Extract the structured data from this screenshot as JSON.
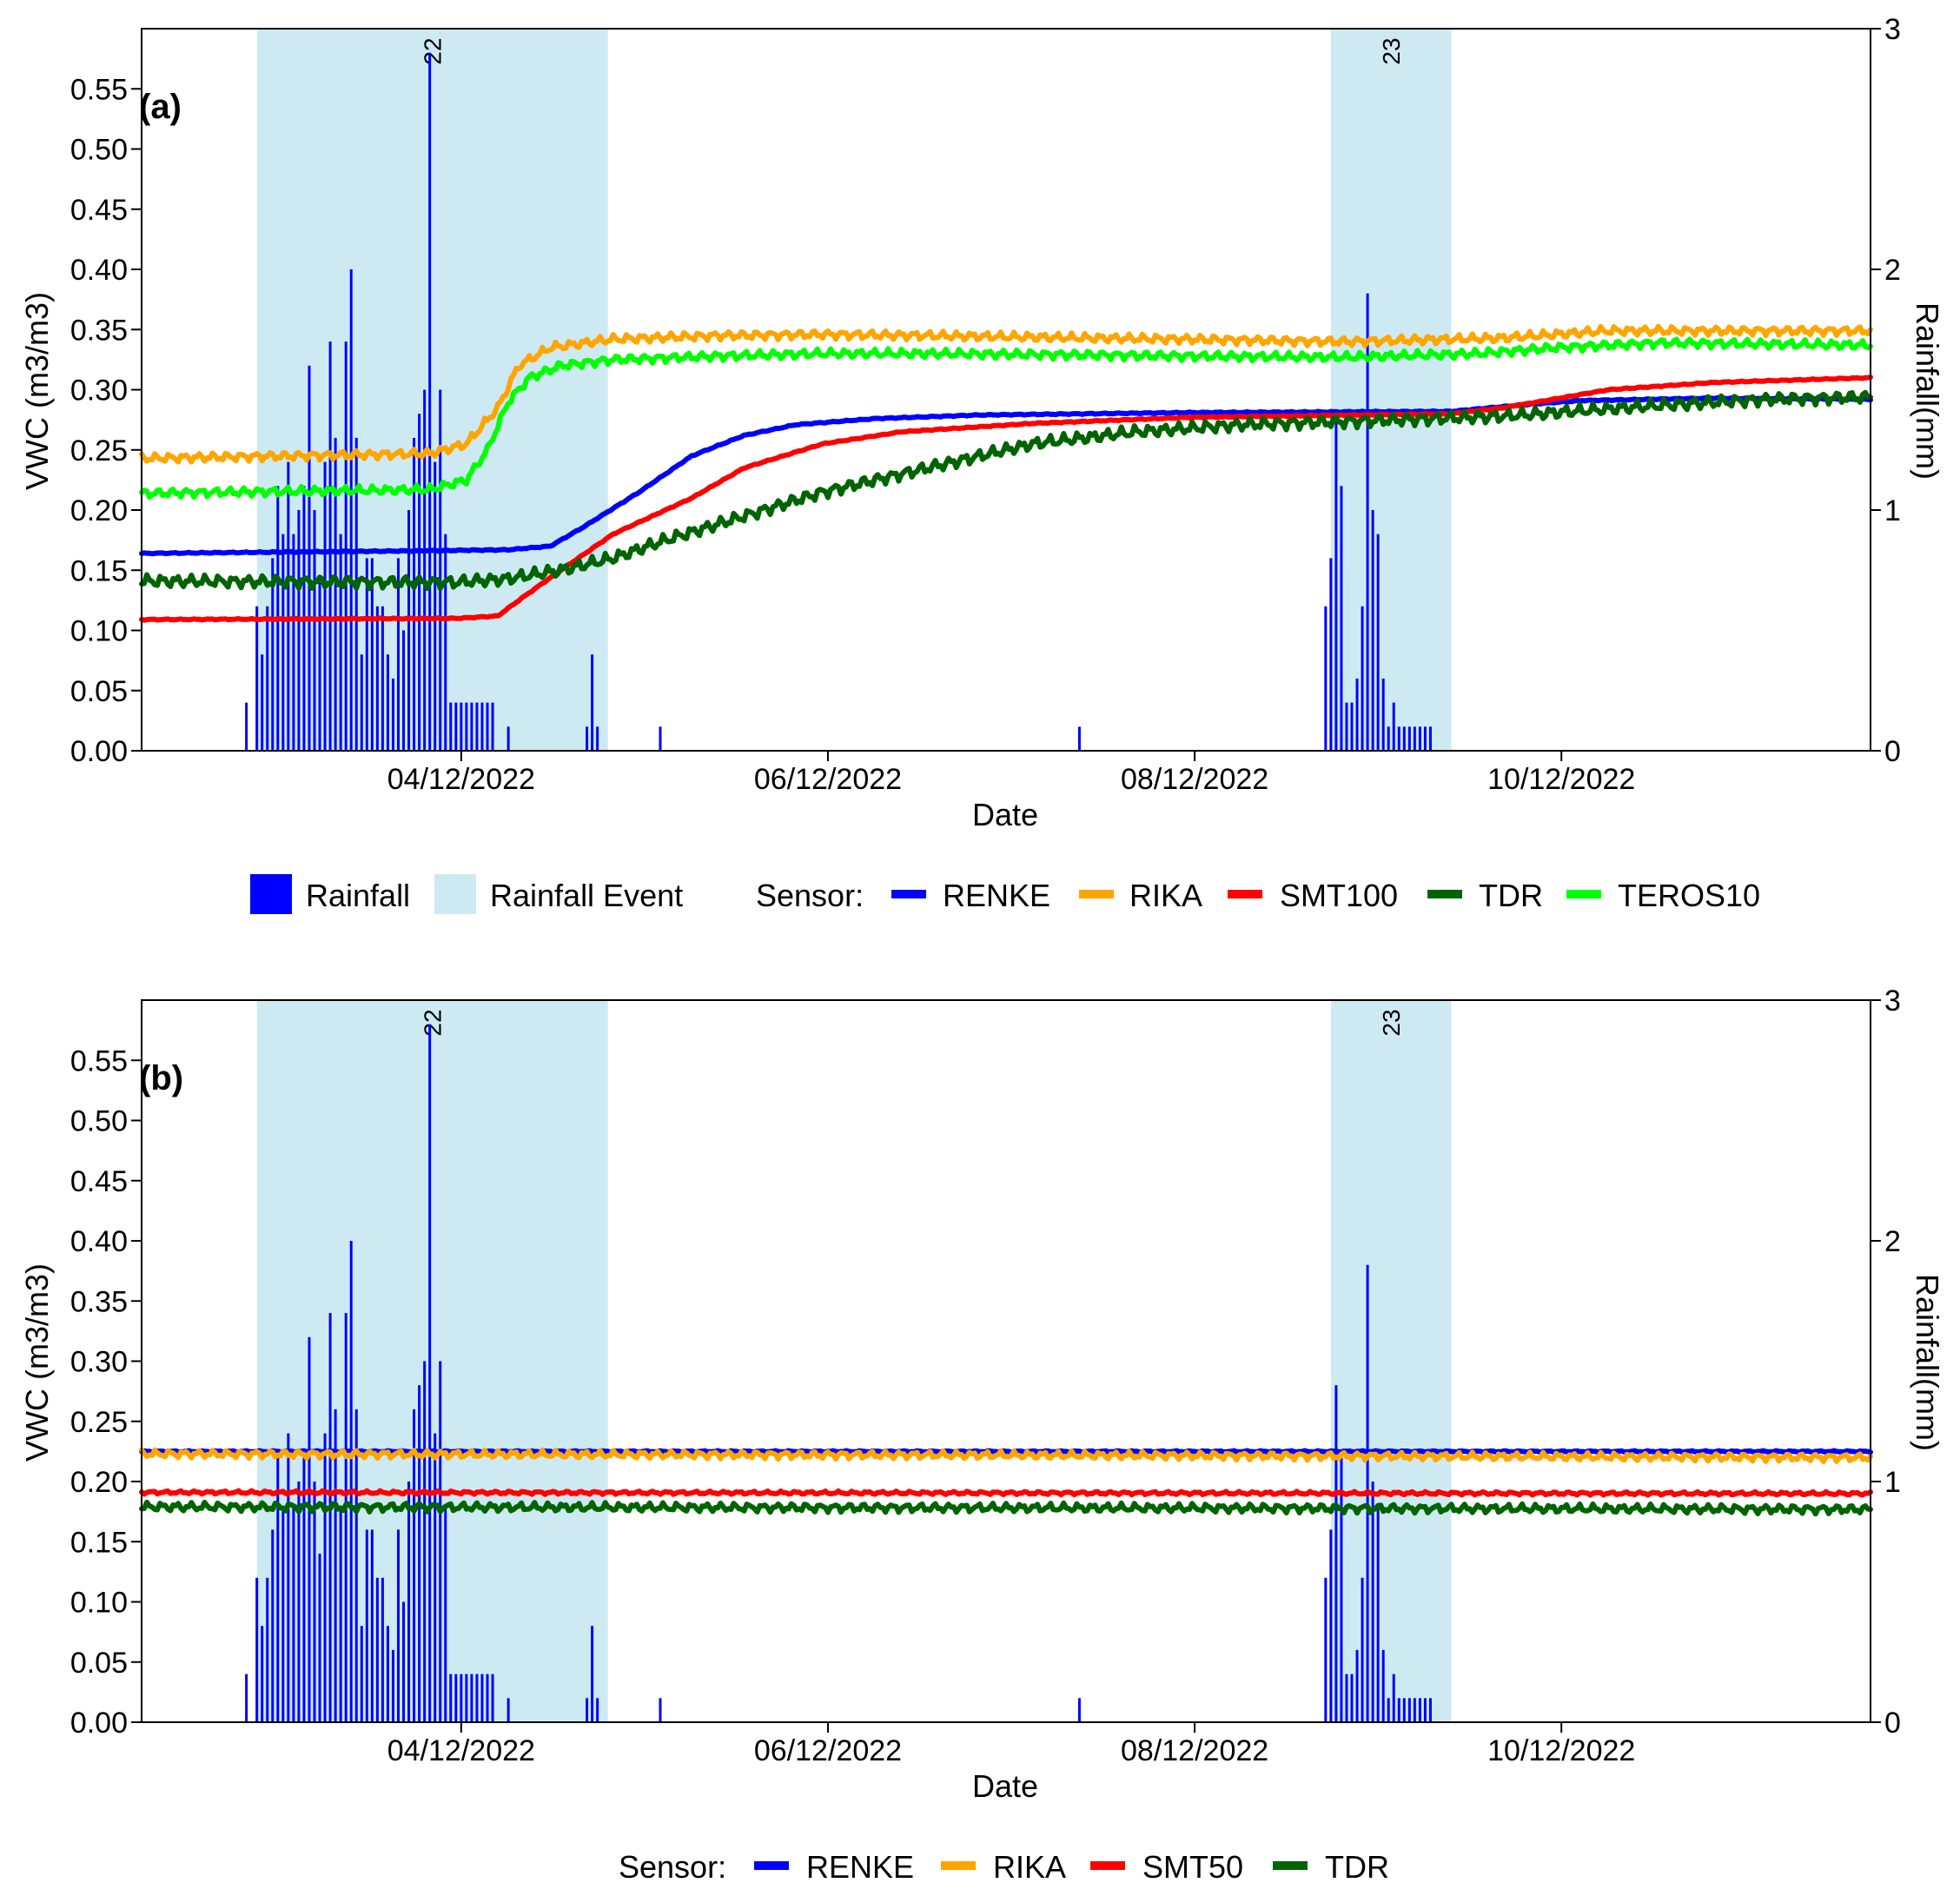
{
  "chart_data": [
    {
      "type": "line",
      "panel_label": "(a)",
      "xlabel": "Date",
      "ylabel": "VWC (m3/m3)",
      "y2label": "Rainfall(mm)",
      "x_unit": "days since 03/01/2022",
      "xlim": [
        0,
        330
      ],
      "ylim": [
        0,
        0.6
      ],
      "y2lim": [
        0,
        3
      ],
      "xticks": [
        {
          "x": 61,
          "label": "04/12/2022"
        },
        {
          "x": 131,
          "label": "06/12/2022"
        },
        {
          "x": 201,
          "label": "08/12/2022"
        },
        {
          "x": 271,
          "label": "10/12/2022"
        }
      ],
      "yticks": [
        "0.00",
        "0.05",
        "0.10",
        "0.15",
        "0.20",
        "0.25",
        "0.30",
        "0.35",
        "0.40",
        "0.45",
        "0.50",
        "0.55"
      ],
      "y2ticks": [
        "0",
        "1",
        "2",
        "3"
      ],
      "events": [
        {
          "label": "22",
          "start": 22,
          "end": 89
        },
        {
          "label": "23",
          "start": 227,
          "end": 250
        }
      ],
      "rainfall": {
        "x": [
          20,
          22,
          23,
          24,
          25,
          26,
          27,
          28,
          29,
          30,
          31,
          32,
          33,
          34,
          35,
          36,
          37,
          38,
          39,
          40,
          41,
          42,
          43,
          44,
          45,
          46,
          47,
          48,
          49,
          50,
          51,
          52,
          53,
          54,
          55,
          56,
          57,
          58,
          59,
          60,
          61,
          62,
          63,
          64,
          65,
          66,
          67,
          70,
          85,
          86,
          87,
          99,
          179,
          226,
          227,
          228,
          229,
          230,
          231,
          232,
          233,
          234,
          235,
          236,
          237,
          238,
          239,
          240,
          241,
          242,
          243,
          244,
          245,
          246
        ],
        "values": [
          0.2,
          0.6,
          0.4,
          0.6,
          0.8,
          1.1,
          0.9,
          1.2,
          0.9,
          1.0,
          1.1,
          1.6,
          1.0,
          0.7,
          1.2,
          1.7,
          1.3,
          0.9,
          1.7,
          2.0,
          1.3,
          0.4,
          0.8,
          0.8,
          0.6,
          0.6,
          0.4,
          0.3,
          0.8,
          0.5,
          1.0,
          1.3,
          1.4,
          1.5,
          2.9,
          1.2,
          1.5,
          0.9,
          0.2,
          0.2,
          0.2,
          0.2,
          0.2,
          0.2,
          0.2,
          0.2,
          0.2,
          0.1,
          0.1,
          0.4,
          0.1,
          0.1,
          0.1,
          0.6,
          0.8,
          1.4,
          1.1,
          0.2,
          0.2,
          0.3,
          0.6,
          1.9,
          1.0,
          0.9,
          0.3,
          0.1,
          0.2,
          0.1,
          0.1,
          0.1,
          0.1,
          0.1,
          0.1,
          0.1
        ]
      },
      "legend": {
        "rainfall_label": "Rainfall",
        "event_label": "Rainfall Event",
        "sensor_title": "Sensor:",
        "rainfall_color": "#0000ff",
        "event_color": "#cdeaf2"
      },
      "series": [
        {
          "name": "RENKE",
          "color": "#0000ff",
          "noise": 0.0003,
          "points": [
            [
              0,
              0.164
            ],
            [
              50,
              0.166
            ],
            [
              70,
              0.167
            ],
            [
              78,
              0.17
            ],
            [
              84,
              0.185
            ],
            [
              95,
              0.215
            ],
            [
              105,
              0.245
            ],
            [
              115,
              0.262
            ],
            [
              125,
              0.271
            ],
            [
              140,
              0.276
            ],
            [
              160,
              0.279
            ],
            [
              200,
              0.281
            ],
            [
              250,
              0.282
            ],
            [
              265,
              0.288
            ],
            [
              275,
              0.291
            ],
            [
              300,
              0.293
            ],
            [
              330,
              0.292
            ]
          ]
        },
        {
          "name": "RIKA",
          "color": "#ffa500",
          "noise": 0.0025,
          "points": [
            [
              0,
              0.243
            ],
            [
              55,
              0.247
            ],
            [
              62,
              0.255
            ],
            [
              68,
              0.285
            ],
            [
              72,
              0.32
            ],
            [
              78,
              0.335
            ],
            [
              90,
              0.342
            ],
            [
              110,
              0.345
            ],
            [
              130,
              0.346
            ],
            [
              150,
              0.345
            ],
            [
              180,
              0.343
            ],
            [
              200,
              0.342
            ],
            [
              230,
              0.34
            ],
            [
              260,
              0.343
            ],
            [
              280,
              0.349
            ],
            [
              330,
              0.349
            ]
          ]
        },
        {
          "name": "SMT100",
          "color": "#ff0000",
          "noise": 0.0003,
          "points": [
            [
              0,
              0.109
            ],
            [
              60,
              0.11
            ],
            [
              68,
              0.112
            ],
            [
              72,
              0.125
            ],
            [
              80,
              0.15
            ],
            [
              90,
              0.18
            ],
            [
              105,
              0.21
            ],
            [
              115,
              0.235
            ],
            [
              130,
              0.255
            ],
            [
              145,
              0.265
            ],
            [
              170,
              0.272
            ],
            [
              200,
              0.277
            ],
            [
              250,
              0.28
            ],
            [
              260,
              0.285
            ],
            [
              280,
              0.3
            ],
            [
              300,
              0.306
            ],
            [
              330,
              0.31
            ]
          ]
        },
        {
          "name": "TDR",
          "color": "#006400",
          "noise": 0.0035,
          "points": [
            [
              0,
              0.141
            ],
            [
              60,
              0.14
            ],
            [
              70,
              0.143
            ],
            [
              80,
              0.15
            ],
            [
              90,
              0.16
            ],
            [
              100,
              0.175
            ],
            [
              115,
              0.195
            ],
            [
              130,
              0.215
            ],
            [
              150,
              0.235
            ],
            [
              170,
              0.255
            ],
            [
              190,
              0.265
            ],
            [
              210,
              0.271
            ],
            [
              240,
              0.275
            ],
            [
              260,
              0.278
            ],
            [
              290,
              0.287
            ],
            [
              310,
              0.292
            ],
            [
              330,
              0.294
            ]
          ]
        },
        {
          "name": "TEROS10",
          "color": "#00ff00",
          "noise": 0.0025,
          "points": [
            [
              0,
              0.214
            ],
            [
              55,
              0.217
            ],
            [
              62,
              0.225
            ],
            [
              66,
              0.25
            ],
            [
              70,
              0.29
            ],
            [
              74,
              0.31
            ],
            [
              80,
              0.32
            ],
            [
              90,
              0.325
            ],
            [
              110,
              0.328
            ],
            [
              130,
              0.33
            ],
            [
              150,
              0.33
            ],
            [
              180,
              0.329
            ],
            [
              200,
              0.328
            ],
            [
              230,
              0.327
            ],
            [
              255,
              0.33
            ],
            [
              270,
              0.335
            ],
            [
              290,
              0.339
            ],
            [
              330,
              0.337
            ]
          ]
        }
      ]
    },
    {
      "type": "line",
      "panel_label": "(b)",
      "xlabel": "Date",
      "ylabel": "VWC (m3/m3)",
      "y2label": "Rainfall(mm)",
      "x_unit": "days since 03/01/2022",
      "xlim": [
        0,
        330
      ],
      "ylim": [
        0,
        0.6
      ],
      "y2lim": [
        0,
        3
      ],
      "xticks": [
        {
          "x": 61,
          "label": "04/12/2022"
        },
        {
          "x": 131,
          "label": "06/12/2022"
        },
        {
          "x": 201,
          "label": "08/12/2022"
        },
        {
          "x": 271,
          "label": "10/12/2022"
        }
      ],
      "yticks": [
        "0.00",
        "0.05",
        "0.10",
        "0.15",
        "0.20",
        "0.25",
        "0.30",
        "0.35",
        "0.40",
        "0.45",
        "0.50",
        "0.55"
      ],
      "y2ticks": [
        "0",
        "1",
        "2",
        "3"
      ],
      "events": [
        {
          "label": "22",
          "start": 22,
          "end": 89
        },
        {
          "label": "23",
          "start": 227,
          "end": 250
        }
      ],
      "rainfall": {
        "x": [
          20,
          22,
          23,
          24,
          25,
          26,
          27,
          28,
          29,
          30,
          31,
          32,
          33,
          34,
          35,
          36,
          37,
          38,
          39,
          40,
          41,
          42,
          43,
          44,
          45,
          46,
          47,
          48,
          49,
          50,
          51,
          52,
          53,
          54,
          55,
          56,
          57,
          58,
          59,
          60,
          61,
          62,
          63,
          64,
          65,
          66,
          67,
          70,
          85,
          86,
          87,
          99,
          179,
          226,
          227,
          228,
          229,
          230,
          231,
          232,
          233,
          234,
          235,
          236,
          237,
          238,
          239,
          240,
          241,
          242,
          243,
          244,
          245,
          246
        ],
        "values": [
          0.2,
          0.6,
          0.4,
          0.6,
          0.8,
          1.1,
          0.9,
          1.2,
          0.9,
          1.0,
          1.1,
          1.6,
          1.0,
          0.7,
          1.2,
          1.7,
          1.3,
          0.9,
          1.7,
          2.0,
          1.3,
          0.4,
          0.8,
          0.8,
          0.6,
          0.6,
          0.4,
          0.3,
          0.8,
          0.5,
          1.0,
          1.3,
          1.4,
          1.5,
          2.9,
          1.2,
          1.5,
          0.9,
          0.2,
          0.2,
          0.2,
          0.2,
          0.2,
          0.2,
          0.2,
          0.2,
          0.2,
          0.1,
          0.1,
          0.4,
          0.1,
          0.1,
          0.1,
          0.6,
          0.8,
          1.4,
          1.1,
          0.2,
          0.2,
          0.3,
          0.6,
          1.9,
          1.0,
          0.9,
          0.3,
          0.1,
          0.2,
          0.1,
          0.1,
          0.1,
          0.1,
          0.1,
          0.1,
          0.1
        ]
      },
      "legend": {
        "sensor_title": "Sensor:"
      },
      "series": [
        {
          "name": "RENKE",
          "color": "#0000ff",
          "noise": 0.0004,
          "points": [
            [
              0,
              0.225
            ],
            [
              330,
              0.225
            ]
          ]
        },
        {
          "name": "RIKA",
          "color": "#ffa500",
          "noise": 0.0022,
          "points": [
            [
              0,
              0.223
            ],
            [
              160,
              0.222
            ],
            [
              330,
              0.22
            ]
          ]
        },
        {
          "name": "SMT50",
          "color": "#ff0000",
          "noise": 0.0009,
          "points": [
            [
              0,
              0.191
            ],
            [
              330,
              0.19
            ]
          ]
        },
        {
          "name": "TDR",
          "color": "#006400",
          "noise": 0.0025,
          "points": [
            [
              0,
              0.179
            ],
            [
              200,
              0.178
            ],
            [
              330,
              0.177
            ]
          ]
        }
      ]
    }
  ]
}
